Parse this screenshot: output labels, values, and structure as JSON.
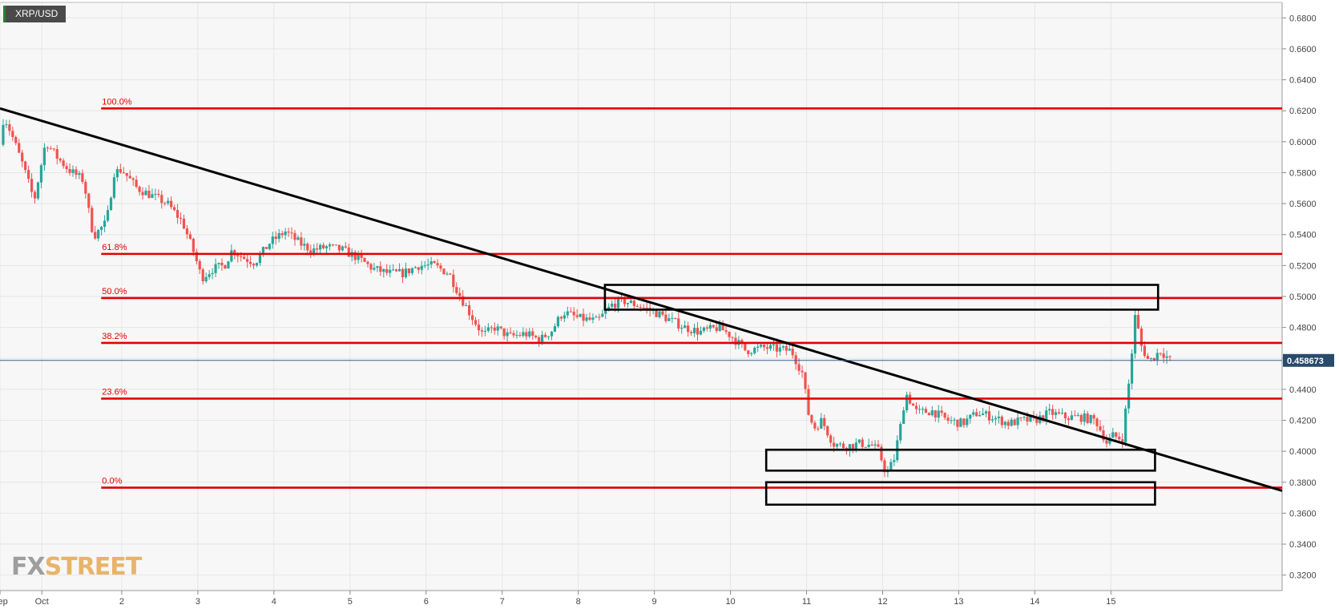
{
  "symbol": "XRP/USD",
  "current_price_label": "0.458673",
  "logo": {
    "part1": "FX",
    "part2": "STREET"
  },
  "colors": {
    "background": "#f7f7f7",
    "grid": "#e6e6e6",
    "up": "#26a69a",
    "down": "#ef5350",
    "fib": "#e00000",
    "trendline": "#000000",
    "price_line": "#3b5b8c",
    "price_badge": "#2a4a6b"
  },
  "chart_data": {
    "type": "candlestick",
    "title": "",
    "xlabel": "",
    "ylabel": "",
    "ylim": [
      0.31,
      0.69
    ],
    "y_ticks": [
      "0.3200",
      "0.3400",
      "0.3600",
      "0.3800",
      "0.4000",
      "0.4200",
      "0.4400",
      "0.4600",
      "0.4800",
      "0.5000",
      "0.5200",
      "0.5400",
      "0.5600",
      "0.5800",
      "0.6000",
      "0.6200",
      "0.6400",
      "0.6600",
      "0.6800"
    ],
    "x_ticks": [
      {
        "label": "Sep",
        "t": 0.0
      },
      {
        "label": "Oct",
        "t": 0.55
      },
      {
        "label": "2",
        "t": 1.6
      },
      {
        "label": "3",
        "t": 2.6
      },
      {
        "label": "4",
        "t": 3.6
      },
      {
        "label": "5",
        "t": 4.6
      },
      {
        "label": "6",
        "t": 5.6
      },
      {
        "label": "7",
        "t": 6.6
      },
      {
        "label": "8",
        "t": 7.6
      },
      {
        "label": "9",
        "t": 8.6
      },
      {
        "label": "10",
        "t": 9.6
      },
      {
        "label": "11",
        "t": 10.6
      },
      {
        "label": "12",
        "t": 11.6
      },
      {
        "label": "13",
        "t": 12.6
      },
      {
        "label": "14",
        "t": 13.6
      },
      {
        "label": "15",
        "t": 14.6
      }
    ],
    "t_range": [
      0.0,
      16.85
    ],
    "grid": true,
    "fibonacci": [
      {
        "label": "100.0%",
        "price": 0.6215
      },
      {
        "label": "61.8%",
        "price": 0.5275
      },
      {
        "label": "50.0%",
        "price": 0.499
      },
      {
        "label": "38.2%",
        "price": 0.47
      },
      {
        "label": "23.6%",
        "price": 0.434
      },
      {
        "label": "0.0%",
        "price": 0.3765
      }
    ],
    "fib_start_t": 1.33,
    "trendline": {
      "t1": 0.0,
      "p1": 0.6215,
      "t2": 16.85,
      "p2": 0.3745
    },
    "zones": [
      {
        "t1": 7.95,
        "t2": 15.22,
        "p_top": 0.5075,
        "p_bottom": 0.4915
      },
      {
        "t1": 10.07,
        "t2": 15.18,
        "p_top": 0.401,
        "p_bottom": 0.3875
      },
      {
        "t1": 10.07,
        "t2": 15.18,
        "p_top": 0.38,
        "p_bottom": 0.3655
      }
    ],
    "current_price": 0.4587,
    "path": [
      [
        0.0,
        0.598
      ],
      [
        0.05,
        0.617
      ],
      [
        0.15,
        0.605
      ],
      [
        0.3,
        0.585
      ],
      [
        0.45,
        0.562
      ],
      [
        0.6,
        0.6
      ],
      [
        0.75,
        0.59
      ],
      [
        0.9,
        0.582
      ],
      [
        1.1,
        0.575
      ],
      [
        1.2,
        0.545
      ],
      [
        1.25,
        0.54
      ],
      [
        1.4,
        0.548
      ],
      [
        1.5,
        0.58
      ],
      [
        1.6,
        0.582
      ],
      [
        1.8,
        0.57
      ],
      [
        2.0,
        0.565
      ],
      [
        2.2,
        0.56
      ],
      [
        2.4,
        0.548
      ],
      [
        2.55,
        0.528
      ],
      [
        2.65,
        0.512
      ],
      [
        2.8,
        0.518
      ],
      [
        2.95,
        0.52
      ],
      [
        3.05,
        0.53
      ],
      [
        3.2,
        0.525
      ],
      [
        3.35,
        0.522
      ],
      [
        3.55,
        0.535
      ],
      [
        3.75,
        0.542
      ],
      [
        3.95,
        0.534
      ],
      [
        4.1,
        0.53
      ],
      [
        4.3,
        0.532
      ],
      [
        4.5,
        0.53
      ],
      [
        4.7,
        0.525
      ],
      [
        4.9,
        0.518
      ],
      [
        5.1,
        0.515
      ],
      [
        5.3,
        0.515
      ],
      [
        5.5,
        0.52
      ],
      [
        5.7,
        0.52
      ],
      [
        5.9,
        0.515
      ],
      [
        6.05,
        0.5
      ],
      [
        6.2,
        0.487
      ],
      [
        6.35,
        0.475
      ],
      [
        6.5,
        0.48
      ],
      [
        6.7,
        0.474
      ],
      [
        6.9,
        0.476
      ],
      [
        7.1,
        0.472
      ],
      [
        7.25,
        0.478
      ],
      [
        7.4,
        0.49
      ],
      [
        7.6,
        0.486
      ],
      [
        7.85,
        0.484
      ],
      [
        8.05,
        0.495
      ],
      [
        8.2,
        0.497
      ],
      [
        8.4,
        0.494
      ],
      [
        8.6,
        0.49
      ],
      [
        8.8,
        0.485
      ],
      [
        9.0,
        0.48
      ],
      [
        9.2,
        0.477
      ],
      [
        9.45,
        0.48
      ],
      [
        9.6,
        0.475
      ],
      [
        9.8,
        0.465
      ],
      [
        10.05,
        0.467
      ],
      [
        10.2,
        0.466
      ],
      [
        10.4,
        0.465
      ],
      [
        10.55,
        0.45
      ],
      [
        10.62,
        0.425
      ],
      [
        10.7,
        0.415
      ],
      [
        10.8,
        0.42
      ],
      [
        10.95,
        0.405
      ],
      [
        11.1,
        0.403
      ],
      [
        11.3,
        0.405
      ],
      [
        11.45,
        0.404
      ],
      [
        11.55,
        0.4
      ],
      [
        11.65,
        0.385
      ],
      [
        11.75,
        0.395
      ],
      [
        11.85,
        0.42
      ],
      [
        11.9,
        0.438
      ],
      [
        12.05,
        0.425
      ],
      [
        12.25,
        0.426
      ],
      [
        12.45,
        0.42
      ],
      [
        12.65,
        0.418
      ],
      [
        12.85,
        0.425
      ],
      [
        13.05,
        0.422
      ],
      [
        13.25,
        0.418
      ],
      [
        13.45,
        0.42
      ],
      [
        13.6,
        0.42
      ],
      [
        13.8,
        0.425
      ],
      [
        14.0,
        0.422
      ],
      [
        14.2,
        0.422
      ],
      [
        14.4,
        0.42
      ],
      [
        14.55,
        0.405
      ],
      [
        14.62,
        0.41
      ],
      [
        14.75,
        0.408
      ],
      [
        14.85,
        0.45
      ],
      [
        14.92,
        0.488
      ],
      [
        15.0,
        0.468
      ],
      [
        15.1,
        0.458
      ],
      [
        15.25,
        0.465
      ],
      [
        15.4,
        0.458
      ]
    ]
  }
}
